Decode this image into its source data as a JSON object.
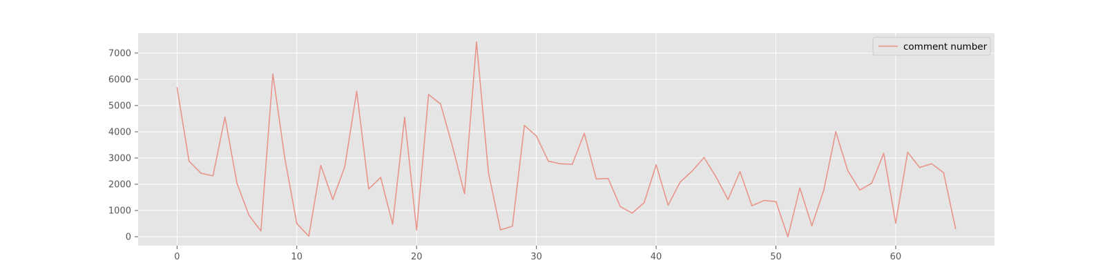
{
  "chart_data": {
    "type": "line",
    "title": "",
    "xlabel": "",
    "ylabel": "",
    "xlim": [
      -3.25,
      68.25
    ],
    "ylim": [
      -340,
      7760
    ],
    "x_ticks": [
      0,
      10,
      20,
      30,
      40,
      50,
      60
    ],
    "y_ticks": [
      0,
      1000,
      2000,
      3000,
      4000,
      5000,
      6000,
      7000
    ],
    "x_tick_labels": [
      "0",
      "10",
      "20",
      "30",
      "40",
      "50",
      "60"
    ],
    "y_tick_labels": [
      "0",
      "1000",
      "2000",
      "3000",
      "4000",
      "5000",
      "6000",
      "7000"
    ],
    "grid": true,
    "legend_position": "top-right",
    "series": [
      {
        "name": "comment number",
        "color": "#E8948A",
        "x": [
          0,
          1,
          2,
          3,
          4,
          5,
          6,
          7,
          8,
          9,
          10,
          11,
          12,
          13,
          14,
          15,
          16,
          17,
          18,
          19,
          20,
          21,
          22,
          23,
          24,
          25,
          26,
          27,
          28,
          29,
          30,
          31,
          32,
          33,
          34,
          35,
          36,
          37,
          38,
          39,
          40,
          41,
          42,
          43,
          44,
          45,
          46,
          47,
          48,
          49,
          50,
          51,
          52,
          53,
          54,
          55,
          56,
          57,
          58,
          59,
          60,
          61,
          62,
          63,
          64,
          65
        ],
        "values": [
          5680,
          2880,
          2420,
          2320,
          4560,
          2040,
          820,
          220,
          6200,
          2980,
          500,
          20,
          2720,
          1420,
          2660,
          5540,
          1820,
          2260,
          480,
          4550,
          260,
          5420,
          5060,
          3440,
          1640,
          7420,
          2440,
          260,
          400,
          4240,
          3840,
          2880,
          2780,
          2760,
          3940,
          2200,
          2220,
          1150,
          900,
          1300,
          2740,
          1200,
          2080,
          2500,
          3020,
          2280,
          1420,
          2480,
          1180,
          1380,
          1340,
          0,
          1860,
          420,
          1780,
          4000,
          2520,
          1780,
          2040,
          3180,
          520,
          3220,
          2640,
          2780,
          2440,
          310
        ]
      }
    ]
  }
}
